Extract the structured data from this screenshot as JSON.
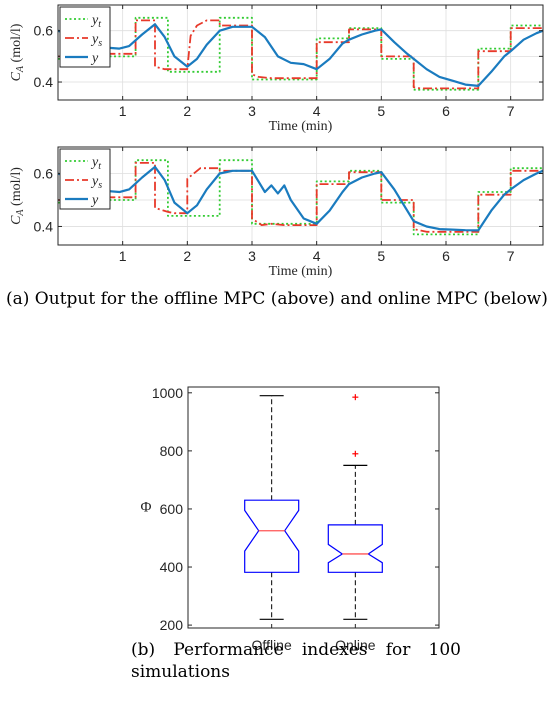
{
  "captions": {
    "a": "(a) Output for the offline MPC (above) and online MPC (below)",
    "b": "(b) Performance indexes for 100 simulations"
  },
  "colors": {
    "y_t": "#33cc33",
    "y_s": "#e8392a",
    "y": "#1a7bbf",
    "box": "#0000ff",
    "median": "#ff5555",
    "outlier": "#ff0000",
    "whisker": "#000000"
  },
  "chart_data": [
    {
      "type": "line",
      "panel": "offline",
      "xlabel": "Time (min)",
      "ylabel": "C_A (mol/l)",
      "ylabel_parts": {
        "main": "C",
        "sub": "A",
        "unit": "(mol/l)"
      },
      "xlim": [
        0,
        7.5
      ],
      "ylim": [
        0.33,
        0.7
      ],
      "xticks": [
        1,
        2,
        3,
        4,
        5,
        6,
        7
      ],
      "yticks": [
        0.4,
        0.5,
        0.6
      ],
      "ytick_labels": [
        "0.4",
        "",
        "0.6"
      ],
      "grid": true,
      "legend_position": "top-left",
      "series": [
        {
          "key": "y_t",
          "name": "y",
          "name_sub": "t",
          "style": "dotted",
          "x": [
            0,
            0.5,
            0.5,
            1.2,
            1.2,
            1.7,
            1.7,
            2.5,
            2.5,
            3.0,
            3.0,
            4.0,
            4.0,
            4.5,
            4.5,
            5.0,
            5.0,
            5.5,
            5.5,
            6.5,
            6.5,
            7.0,
            7.0,
            7.5
          ],
          "y": [
            0.49,
            0.49,
            0.5,
            0.5,
            0.65,
            0.65,
            0.44,
            0.44,
            0.65,
            0.65,
            0.41,
            0.41,
            0.57,
            0.57,
            0.61,
            0.61,
            0.49,
            0.49,
            0.37,
            0.37,
            0.53,
            0.53,
            0.62,
            0.62
          ]
        },
        {
          "key": "y_s",
          "name": "y",
          "name_sub": "s",
          "style": "dashdot",
          "x": [
            0,
            0.5,
            0.5,
            1.2,
            1.2,
            1.3,
            1.45,
            1.5,
            1.5,
            1.65,
            1.7,
            2.0,
            2.05,
            2.15,
            2.3,
            2.5,
            2.5,
            3.0,
            3.0,
            3.1,
            3.3,
            4.0,
            4.0,
            4.5,
            4.5,
            5.0,
            5.0,
            5.5,
            5.5,
            5.6,
            6.5,
            6.5,
            7.0,
            7.0,
            7.5
          ],
          "y": [
            0.5,
            0.5,
            0.51,
            0.51,
            0.64,
            0.64,
            0.64,
            0.64,
            0.46,
            0.45,
            0.45,
            0.45,
            0.58,
            0.62,
            0.64,
            0.64,
            0.62,
            0.62,
            0.43,
            0.42,
            0.415,
            0.415,
            0.555,
            0.555,
            0.605,
            0.605,
            0.5,
            0.5,
            0.38,
            0.375,
            0.375,
            0.52,
            0.52,
            0.61,
            0.61
          ]
        },
        {
          "key": "y",
          "name": "y",
          "name_sub": "",
          "style": "solid",
          "x": [
            0,
            0.15,
            0.3,
            0.5,
            0.7,
            0.95,
            1.1,
            1.3,
            1.5,
            1.65,
            1.8,
            2.0,
            2.15,
            2.3,
            2.5,
            2.7,
            3.0,
            3.2,
            3.4,
            3.6,
            3.8,
            4.0,
            4.2,
            4.4,
            4.5,
            4.7,
            4.9,
            5.0,
            5.2,
            5.4,
            5.5,
            5.7,
            5.9,
            6.1,
            6.3,
            6.5,
            6.7,
            6.9,
            7.0,
            7.2,
            7.4,
            7.5
          ],
          "y": [
            0.6,
            0.585,
            0.56,
            0.55,
            0.535,
            0.53,
            0.54,
            0.585,
            0.625,
            0.575,
            0.5,
            0.46,
            0.49,
            0.545,
            0.6,
            0.615,
            0.615,
            0.575,
            0.5,
            0.475,
            0.47,
            0.45,
            0.49,
            0.55,
            0.565,
            0.585,
            0.6,
            0.605,
            0.555,
            0.51,
            0.49,
            0.45,
            0.42,
            0.405,
            0.39,
            0.385,
            0.44,
            0.5,
            0.52,
            0.565,
            0.59,
            0.6
          ]
        }
      ]
    },
    {
      "type": "line",
      "panel": "online",
      "xlabel": "Time (min)",
      "ylabel": "C_A (mol/l)",
      "ylabel_parts": {
        "main": "C",
        "sub": "A",
        "unit": "(mol/l)"
      },
      "xlim": [
        0,
        7.5
      ],
      "ylim": [
        0.33,
        0.7
      ],
      "xticks": [
        1,
        2,
        3,
        4,
        5,
        6,
        7
      ],
      "yticks": [
        0.4,
        0.5,
        0.6
      ],
      "ytick_labels": [
        "0.4",
        "",
        "0.6"
      ],
      "grid": true,
      "legend_position": "top-left",
      "series": [
        {
          "key": "y_t",
          "name": "y",
          "name_sub": "t",
          "style": "dotted",
          "x": [
            0,
            0.5,
            0.5,
            1.2,
            1.2,
            1.7,
            1.7,
            2.5,
            2.5,
            3.0,
            3.0,
            4.0,
            4.0,
            4.5,
            4.5,
            5.0,
            5.0,
            5.5,
            5.5,
            6.5,
            6.5,
            7.0,
            7.0,
            7.5
          ],
          "y": [
            0.49,
            0.49,
            0.5,
            0.5,
            0.65,
            0.65,
            0.44,
            0.44,
            0.65,
            0.65,
            0.41,
            0.41,
            0.57,
            0.57,
            0.61,
            0.61,
            0.49,
            0.49,
            0.37,
            0.37,
            0.53,
            0.53,
            0.62,
            0.62
          ]
        },
        {
          "key": "y_s",
          "name": "y",
          "name_sub": "s",
          "style": "dashdot",
          "x": [
            0,
            0.5,
            0.5,
            1.2,
            1.2,
            1.5,
            1.5,
            1.7,
            1.8,
            2.0,
            2.0,
            2.2,
            2.5,
            2.5,
            3.0,
            3.0,
            3.15,
            3.3,
            3.5,
            4.0,
            4.0,
            4.5,
            4.5,
            5.0,
            5.0,
            5.5,
            5.5,
            5.7,
            6.5,
            6.5,
            7.0,
            7.0,
            7.5
          ],
          "y": [
            0.5,
            0.5,
            0.51,
            0.51,
            0.64,
            0.64,
            0.47,
            0.455,
            0.45,
            0.45,
            0.58,
            0.62,
            0.62,
            0.61,
            0.61,
            0.43,
            0.405,
            0.41,
            0.405,
            0.405,
            0.56,
            0.56,
            0.605,
            0.605,
            0.5,
            0.5,
            0.39,
            0.38,
            0.38,
            0.52,
            0.52,
            0.61,
            0.61
          ]
        },
        {
          "key": "y",
          "name": "y",
          "name_sub": "",
          "style": "solid",
          "x": [
            0,
            0.15,
            0.3,
            0.5,
            0.7,
            0.95,
            1.1,
            1.3,
            1.5,
            1.65,
            1.8,
            2.0,
            2.15,
            2.3,
            2.5,
            2.7,
            3.0,
            3.1,
            3.2,
            3.3,
            3.4,
            3.5,
            3.6,
            3.8,
            4.0,
            4.2,
            4.4,
            4.5,
            4.7,
            4.9,
            5.0,
            5.2,
            5.4,
            5.5,
            5.7,
            5.9,
            6.1,
            6.3,
            6.5,
            6.7,
            6.9,
            7.0,
            7.2,
            7.4,
            7.5
          ],
          "y": [
            0.6,
            0.585,
            0.56,
            0.55,
            0.535,
            0.53,
            0.54,
            0.585,
            0.625,
            0.575,
            0.49,
            0.45,
            0.48,
            0.54,
            0.6,
            0.61,
            0.61,
            0.57,
            0.53,
            0.555,
            0.525,
            0.555,
            0.5,
            0.43,
            0.41,
            0.46,
            0.53,
            0.56,
            0.585,
            0.6,
            0.605,
            0.54,
            0.46,
            0.42,
            0.4,
            0.39,
            0.388,
            0.386,
            0.385,
            0.46,
            0.52,
            0.54,
            0.575,
            0.6,
            0.61
          ]
        }
      ]
    },
    {
      "type": "box",
      "ylabel": "Φ",
      "ylim": [
        190,
        1020
      ],
      "yticks": [
        200,
        400,
        600,
        800,
        1000
      ],
      "categories": [
        "Offline",
        "Online"
      ],
      "boxes": [
        {
          "name": "Offline",
          "min": 220,
          "q1": 382,
          "median": 525,
          "q3": 630,
          "max": 990,
          "notch_low": 455,
          "notch_high": 595,
          "outliers": []
        },
        {
          "name": "Online",
          "min": 220,
          "q1": 382,
          "median": 445,
          "q3": 545,
          "max": 750,
          "notch_low": 415,
          "notch_high": 478,
          "outliers": [
            985,
            790
          ]
        }
      ]
    }
  ]
}
